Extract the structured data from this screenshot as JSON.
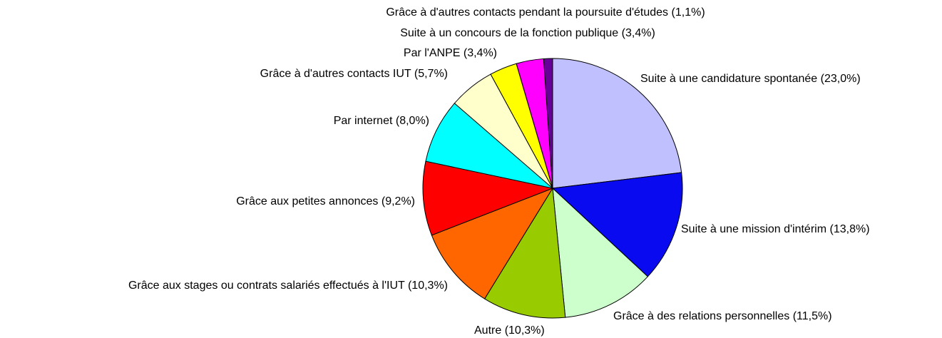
{
  "chart_data": {
    "type": "pie",
    "categories": [
      "Suite à une candidature spontanée",
      "Suite à une mission d'intérim",
      "Grâce à des relations personnelles",
      "Autre",
      "Grâce aux stages ou contrats salariés effectués à l'IUT",
      "Grâce aux petites annonces",
      "Par internet",
      "Grâce à d'autres contacts IUT",
      "Par l'ANPE",
      "Suite à un concours de la fonction publique",
      "Grâce à d'autres contacts pendant la poursuite d'études"
    ],
    "values": [
      23.0,
      13.8,
      11.5,
      10.3,
      10.3,
      9.2,
      8.0,
      5.7,
      3.4,
      3.4,
      1.1
    ],
    "value_labels": [
      "(23,0%)",
      "(13,8%)",
      "(11,5%)",
      "(10,3%)",
      "(10,3%)",
      "(9,2%)",
      "(8,0%)",
      "(5,7%)",
      "(3,4%)",
      "(3,4%)",
      "(1,1%)"
    ],
    "colors": [
      "#c0c0ff",
      "#0a0af0",
      "#ccffcc",
      "#99cc00",
      "#ff6600",
      "#ff0000",
      "#00ffff",
      "#ffffcc",
      "#ffff00",
      "#ff00ff",
      "#660099"
    ]
  }
}
